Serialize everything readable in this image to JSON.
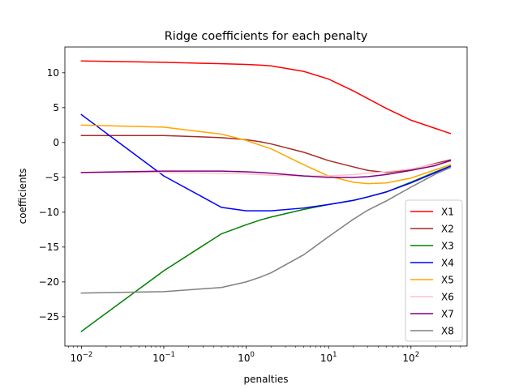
{
  "chart_data": {
    "type": "line",
    "title": "Ridge coefficients for each penalty",
    "xlabel": "penalties",
    "ylabel": "coefficients",
    "xscale": "log",
    "xlim": [
      0.0063,
      480
    ],
    "ylim": [
      -29.2,
      13.7
    ],
    "x_ticks": [
      {
        "value": 0.01,
        "base": "10",
        "exp": "−2"
      },
      {
        "value": 0.1,
        "base": "10",
        "exp": "−1"
      },
      {
        "value": 1,
        "base": "10",
        "exp": "0"
      },
      {
        "value": 10,
        "base": "10",
        "exp": "1"
      },
      {
        "value": 100,
        "base": "10",
        "exp": "2"
      }
    ],
    "y_ticks": [
      {
        "value": 10,
        "label": "10"
      },
      {
        "value": 5,
        "label": "5"
      },
      {
        "value": 0,
        "label": "0"
      },
      {
        "value": -5,
        "label": "−5"
      },
      {
        "value": -10,
        "label": "−10"
      },
      {
        "value": -15,
        "label": "−15"
      },
      {
        "value": -20,
        "label": "−20"
      },
      {
        "value": -25,
        "label": "−25"
      }
    ],
    "grid": false,
    "legend_position": "lower right",
    "x": [
      0.01,
      0.1,
      0.5,
      1,
      1.5,
      2,
      5,
      10,
      20,
      30,
      50,
      100,
      200,
      300
    ],
    "series": [
      {
        "name": "X1",
        "color": "#ff0000",
        "values": [
          11.7,
          11.5,
          11.3,
          11.2,
          11.1,
          11.0,
          10.2,
          9.1,
          7.4,
          6.3,
          4.9,
          3.2,
          2.0,
          1.3
        ]
      },
      {
        "name": "X2",
        "color": "#a52a2a",
        "values": [
          1.0,
          1.0,
          0.7,
          0.4,
          0.1,
          -0.2,
          -1.4,
          -2.6,
          -3.5,
          -4.0,
          -4.3,
          -3.9,
          -3.0,
          -2.5
        ]
      },
      {
        "name": "X3",
        "color": "#008000",
        "values": [
          -27.1,
          -18.4,
          -13.1,
          -11.8,
          -11.1,
          -10.7,
          -9.6,
          -8.9,
          -8.3,
          -7.8,
          -7.1,
          -5.7,
          -4.2,
          -3.4
        ]
      },
      {
        "name": "X4",
        "color": "#0000ff",
        "values": [
          4.0,
          -4.8,
          -9.3,
          -9.8,
          -9.8,
          -9.8,
          -9.4,
          -8.9,
          -8.3,
          -7.8,
          -7.1,
          -5.8,
          -4.3,
          -3.4
        ]
      },
      {
        "name": "X5",
        "color": "#ffa500",
        "values": [
          2.5,
          2.2,
          1.2,
          0.3,
          -0.4,
          -0.9,
          -3.2,
          -4.8,
          -5.7,
          -5.9,
          -5.8,
          -5.1,
          -3.9,
          -3.2
        ]
      },
      {
        "name": "X6",
        "color": "#ffc0cb",
        "values": [
          -4.3,
          -4.3,
          -4.4,
          -4.5,
          -4.6,
          -4.7,
          -4.8,
          -4.8,
          -4.6,
          -4.4,
          -4.2,
          -3.8,
          -3.1,
          -2.7
        ]
      },
      {
        "name": "X7",
        "color": "#800080",
        "values": [
          -4.3,
          -4.1,
          -4.1,
          -4.2,
          -4.3,
          -4.4,
          -4.8,
          -5.0,
          -5.0,
          -4.9,
          -4.6,
          -4.0,
          -3.3,
          -2.6
        ]
      },
      {
        "name": "X8",
        "color": "#808080",
        "values": [
          -21.6,
          -21.4,
          -20.8,
          -20.0,
          -19.3,
          -18.7,
          -16.1,
          -13.5,
          -11.0,
          -9.7,
          -8.4,
          -6.4,
          -4.5,
          -3.6
        ]
      }
    ]
  }
}
